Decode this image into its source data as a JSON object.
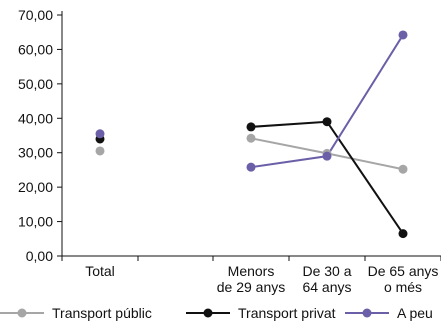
{
  "chart_data": {
    "type": "line",
    "title": "",
    "xlabel": "",
    "ylabel": "",
    "ylim": [
      0,
      70
    ],
    "yticks": [
      "0,00",
      "10,00",
      "20,00",
      "30,00",
      "40,00",
      "50,00",
      "60,00",
      "70,00"
    ],
    "categories": [
      [
        "Total"
      ],
      [
        ""
      ],
      [
        "Menors",
        "de 29 anys"
      ],
      [
        "De 30 a",
        "64 anys"
      ],
      [
        "De 65 anys",
        "o més"
      ]
    ],
    "grid": false,
    "legend_position": "bottom",
    "series": [
      {
        "name": "Transport públic",
        "color": "#a6a6a6",
        "values": [
          30.5,
          null,
          34.2,
          29.8,
          25.2
        ]
      },
      {
        "name": "Transport privat",
        "color": "#111111",
        "values": [
          34.0,
          null,
          37.5,
          39.0,
          6.5
        ]
      },
      {
        "name": "A peu",
        "color": "#6b5fa8",
        "values": [
          35.5,
          null,
          25.8,
          29.0,
          64.2
        ]
      }
    ]
  }
}
